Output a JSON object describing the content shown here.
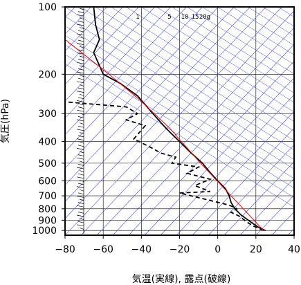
{
  "chart_data": {
    "type": "line",
    "title": "",
    "xlabel": "気温(実線), 露点(破線)",
    "ylabel": "気圧(hPa)",
    "xlim": [
      -80,
      40
    ],
    "ylim": [
      1050,
      100
    ],
    "y_scale": "log",
    "grid": true,
    "x_ticks": [
      "−80",
      "−60",
      "−40",
      "−20",
      "0",
      "20",
      "40"
    ],
    "x_tick_values": [
      -80,
      -60,
      -40,
      -20,
      0,
      20,
      40
    ],
    "y_ticks": [
      "100",
      "200",
      "300",
      "400",
      "500",
      "600",
      "700",
      "800",
      "900",
      "1000"
    ],
    "y_tick_values": [
      100,
      200,
      300,
      400,
      500,
      600,
      700,
      800,
      900,
      1000
    ],
    "mixing_ratio_labels": [
      "1",
      "5",
      "10",
      "15",
      "20g"
    ],
    "mixing_ratio_values": [
      1,
      5,
      10,
      15,
      20
    ],
    "series": [
      {
        "style": "solid",
        "color": "#000000",
        "points": [
          [
            25,
            1000
          ],
          [
            22,
            975
          ],
          [
            20,
            950
          ],
          [
            16,
            900
          ],
          [
            12,
            850
          ],
          [
            9,
            800
          ],
          [
            7,
            750
          ],
          [
            6,
            700
          ],
          [
            4,
            650
          ],
          [
            0,
            600
          ],
          [
            -4,
            550
          ],
          [
            -8,
            500
          ],
          [
            -14,
            450
          ],
          [
            -20,
            400
          ],
          [
            -27,
            350
          ],
          [
            -34,
            300
          ],
          [
            -42,
            250
          ],
          [
            -51,
            220
          ],
          [
            -60,
            200
          ],
          [
            -63,
            175
          ],
          [
            -65,
            160
          ],
          [
            -62,
            140
          ],
          [
            -64,
            120
          ],
          [
            -65,
            100
          ]
        ]
      },
      {
        "style": "dashed",
        "color": "#000000",
        "points": [
          [
            24,
            1000
          ],
          [
            21,
            975
          ],
          [
            18,
            950
          ],
          [
            14,
            900
          ],
          [
            11,
            860
          ],
          [
            7,
            830
          ],
          [
            10,
            800
          ],
          [
            6,
            770
          ],
          [
            -20,
            680
          ],
          [
            -4,
            670
          ],
          [
            -12,
            630
          ],
          [
            -4,
            590
          ],
          [
            -16,
            555
          ],
          [
            -10,
            520
          ],
          [
            -24,
            500
          ],
          [
            -22,
            470
          ],
          [
            -30,
            450
          ],
          [
            -34,
            430
          ],
          [
            -40,
            405
          ],
          [
            -44,
            390
          ],
          [
            -38,
            340
          ],
          [
            -48,
            320
          ],
          [
            -42,
            300
          ],
          [
            -48,
            280
          ],
          [
            -82,
            265
          ]
        ]
      },
      {
        "style": "solid",
        "color": "#ff0000",
        "points": [
          [
            24,
            1000
          ],
          [
            7,
            700
          ],
          [
            -9,
            500
          ],
          [
            -25,
            350
          ],
          [
            -41,
            260
          ],
          [
            -57,
            200
          ],
          [
            -80,
            140
          ]
        ]
      }
    ],
    "wind_barbs_present": true
  }
}
